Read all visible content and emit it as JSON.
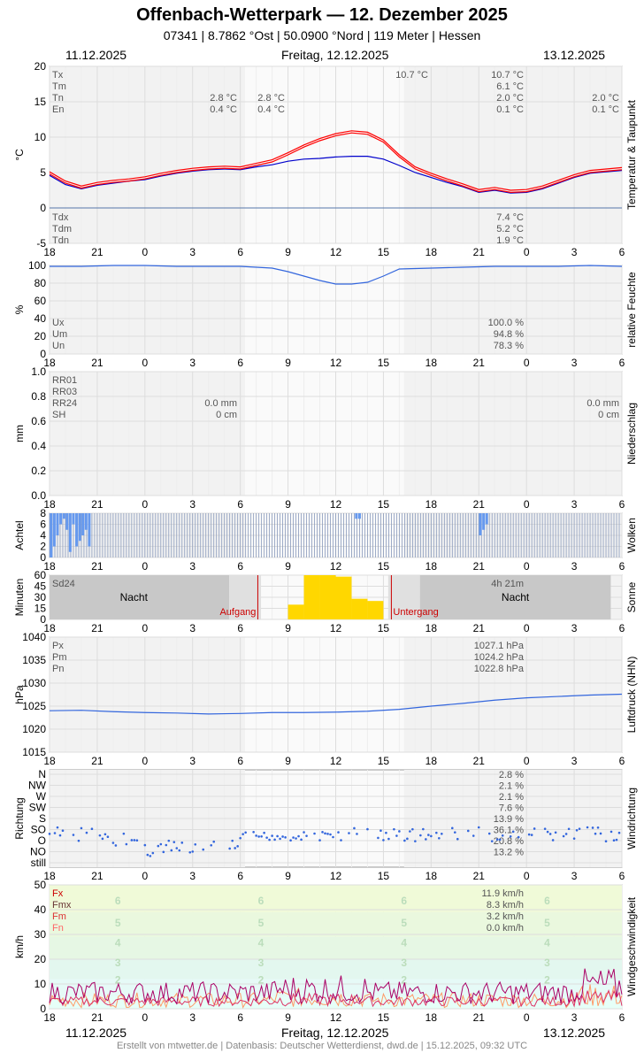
{
  "header": {
    "title": "Offenbach-Wetterpark  —  12. Dezember 2025",
    "subtitle": "07341  |  8.7862 °Ost  |  50.0900 °Nord  |  119 Meter  |  Hessen",
    "date_left": "11.12.2025",
    "date_center": "Freitag, 12.12.2025",
    "date_right": "13.12.2025"
  },
  "footer": "Erstellt von mtwetter.de | Datenbasis: Deutscher Wetterdienst, dwd.de | 15.12.2025, 09:32 UTC",
  "x_ticks": [
    "18",
    "21",
    "0",
    "3",
    "6",
    "9",
    "12",
    "15",
    "18",
    "21",
    "0",
    "3",
    "6"
  ],
  "colors": {
    "temp": "#ff0000",
    "dew": "#0000cc",
    "blue": "#3366dd",
    "sun": "#ffd700",
    "red": "#cc0000"
  },
  "chart_data": [
    {
      "type": "line",
      "title": "Temperatur & Taupunkt",
      "ylabel": "°C",
      "ylim": [
        -5,
        20
      ],
      "y_ticks": [
        "20",
        "15",
        "10",
        "5",
        "0",
        "-5"
      ],
      "x": [
        18,
        19,
        20,
        21,
        22,
        23,
        0,
        1,
        2,
        3,
        4,
        5,
        6,
        7,
        8,
        9,
        10,
        11,
        12,
        13,
        14,
        15,
        16,
        17,
        18,
        19,
        20,
        21,
        22,
        23,
        0,
        1,
        2,
        3,
        4,
        5,
        6
      ],
      "series": [
        {
          "name": "",
          "values": [
            4.8,
            3.5,
            2.8,
            3.3,
            3.6,
            3.8,
            4.1,
            4.6,
            5.0,
            5.3,
            5.5,
            5.6,
            5.5,
            6.0,
            6.5,
            7.5,
            8.6,
            9.5,
            10.2,
            10.6,
            10.4,
            9.3,
            7.2,
            5.5,
            4.6,
            3.8,
            3.1,
            2.3,
            2.6,
            2.2,
            2.3,
            2.8,
            3.6,
            4.4,
            5.0,
            5.2,
            5.4
          ]
        },
        {
          "name": "",
          "values": [
            4.6,
            3.3,
            2.7,
            3.2,
            3.5,
            3.8,
            4.0,
            4.5,
            4.9,
            5.2,
            5.4,
            5.5,
            5.4,
            5.8,
            6.1,
            6.6,
            6.9,
            7.0,
            7.2,
            7.3,
            7.3,
            6.9,
            6.0,
            5.0,
            4.3,
            3.6,
            3.0,
            2.2,
            2.5,
            2.1,
            2.2,
            2.7,
            3.5,
            4.3,
            4.9,
            5.1,
            5.3
          ]
        }
      ],
      "labels_top": [
        {
          "name": "Tx",
          "left": "",
          "right1": "10.7 °C",
          "right2": "10.7 °C",
          "right3": ""
        },
        {
          "name": "Tm",
          "left": "",
          "right1": "",
          "right2": "6.1 °C",
          "right3": ""
        },
        {
          "name": "Tn",
          "left": "2.8 °C",
          "leftb": "2.8 °C",
          "right2": "2.0 °C",
          "right3": "2.0 °C"
        },
        {
          "name": "En",
          "left": "0.4 °C",
          "leftb": "0.4 °C",
          "right2": "0.1 °C",
          "right3": "0.1 °C"
        }
      ],
      "labels_bottom": [
        {
          "name": "Tdx",
          "value": "7.4 °C"
        },
        {
          "name": "Tdm",
          "value": "5.2 °C"
        },
        {
          "name": "Tdn",
          "value": "1.9 °C"
        }
      ]
    },
    {
      "type": "line",
      "title": "relative Feuchte",
      "ylabel": "%",
      "ylim": [
        0,
        100
      ],
      "y_ticks": [
        "100",
        "80",
        "60",
        "40",
        "20",
        "0"
      ],
      "x": [
        18,
        20,
        22,
        0,
        2,
        4,
        6,
        8,
        9,
        10,
        11,
        12,
        13,
        14,
        15,
        16,
        18,
        20,
        22,
        0,
        2,
        4,
        6
      ],
      "series": [
        {
          "name": "",
          "values": [
            99,
            99,
            100,
            100,
            99,
            99,
            99,
            97,
            93,
            88,
            83,
            79,
            79,
            81,
            88,
            96,
            97,
            98,
            99,
            99,
            99,
            100,
            99
          ]
        }
      ],
      "labels": [
        {
          "name": "Ux",
          "value": "100.0 %"
        },
        {
          "name": "Um",
          "value": "94.8 %"
        },
        {
          "name": "Un",
          "value": "78.3 %"
        }
      ]
    },
    {
      "type": "bar",
      "title": "Niederschlag",
      "ylabel": "mm",
      "ylim": [
        0,
        1
      ],
      "y_ticks": [
        "1.0",
        "0.8",
        "0.6",
        "0.4",
        "0.2",
        "0.0"
      ],
      "labels": [
        {
          "name": "RR01",
          "mid": "",
          "right": ""
        },
        {
          "name": "RR03",
          "mid": "",
          "right": ""
        },
        {
          "name": "RR24",
          "mid": "0.0 mm",
          "right": "0.0 mm"
        },
        {
          "name": "SH",
          "mid": "0 cm",
          "right": "0 cm"
        }
      ]
    },
    {
      "type": "bar",
      "title": "Wolken",
      "ylabel": "Achtel",
      "ylim": [
        0,
        8
      ],
      "y_ticks": [
        "8",
        "6",
        "4",
        "2",
        "0"
      ],
      "cloud_blue_hours": [
        18.1,
        18.3,
        18.5,
        18.7,
        18.9,
        19.1,
        19.3,
        19.5,
        19.7,
        19.9,
        20.1,
        20.3,
        20.5,
        13.3,
        13.5,
        21.1,
        21.3,
        21.5
      ],
      "cloud_blue_values": [
        8,
        6,
        4,
        2,
        1,
        3,
        7,
        2,
        6,
        5,
        4,
        3,
        6,
        1,
        1,
        4,
        3,
        2
      ]
    },
    {
      "type": "bar",
      "title": "Sonne",
      "ylabel": "Minuten",
      "ylim": [
        0,
        60
      ],
      "y_ticks": [
        "60",
        "45",
        "30",
        "15",
        "0"
      ],
      "sd24_label": "Sd24",
      "sd24_value": "4h 21m",
      "night_label": "Nacht",
      "sunrise": "Aufgang",
      "sunset": "Untergang",
      "hours": [
        9,
        10,
        11,
        12,
        13,
        14
      ],
      "minutes": [
        20,
        60,
        60,
        58,
        28,
        25
      ]
    },
    {
      "type": "line",
      "title": "Luftdruck (NHN)",
      "ylabel": "hPa",
      "ylim": [
        1015,
        1040
      ],
      "y_ticks": [
        "1040",
        "1035",
        "1030",
        "1025",
        "1020",
        "1015"
      ],
      "x": [
        18,
        20,
        22,
        0,
        2,
        4,
        6,
        8,
        10,
        12,
        14,
        16,
        18,
        20,
        22,
        0,
        2,
        4,
        6
      ],
      "series": [
        {
          "name": "",
          "values": [
            1024.0,
            1024.1,
            1023.8,
            1023.6,
            1023.5,
            1023.3,
            1023.4,
            1023.6,
            1023.6,
            1023.7,
            1023.9,
            1024.3,
            1025.0,
            1025.6,
            1026.3,
            1026.8,
            1027.1,
            1027.4,
            1027.6
          ]
        }
      ],
      "labels": [
        {
          "name": "Px",
          "value": "1027.1 hPa"
        },
        {
          "name": "Pm",
          "value": "1024.2 hPa"
        },
        {
          "name": "Pn",
          "value": "1022.8 hPa"
        }
      ]
    },
    {
      "type": "scatter",
      "title": "Windrichtung",
      "ylabel": "Richtung",
      "y_ticks": [
        "N",
        "NW",
        "W",
        "SW",
        "S",
        "SO",
        "O",
        "NO",
        "still"
      ],
      "y_values": [
        "2.8 %",
        "2.1 %",
        "2.1 %",
        "7.6 %",
        "13.9 %",
        "36.1 %",
        "20.8 %",
        "13.2 %"
      ]
    },
    {
      "type": "line",
      "title": "Windgeschwindigkeit",
      "ylabel": "km/h",
      "ylim": [
        0,
        50
      ],
      "y_ticks": [
        "50",
        "40",
        "30",
        "20",
        "10",
        "0"
      ],
      "bft": [
        "6",
        "5",
        "4",
        "3",
        "2"
      ],
      "labels": [
        {
          "name": "Fx",
          "value": "11.9 km/h"
        },
        {
          "name": "Fmx",
          "value": "8.3 km/h"
        },
        {
          "name": "Fm",
          "value": "3.2 km/h"
        },
        {
          "name": "Fn",
          "value": "0.0 km/h"
        }
      ]
    }
  ]
}
